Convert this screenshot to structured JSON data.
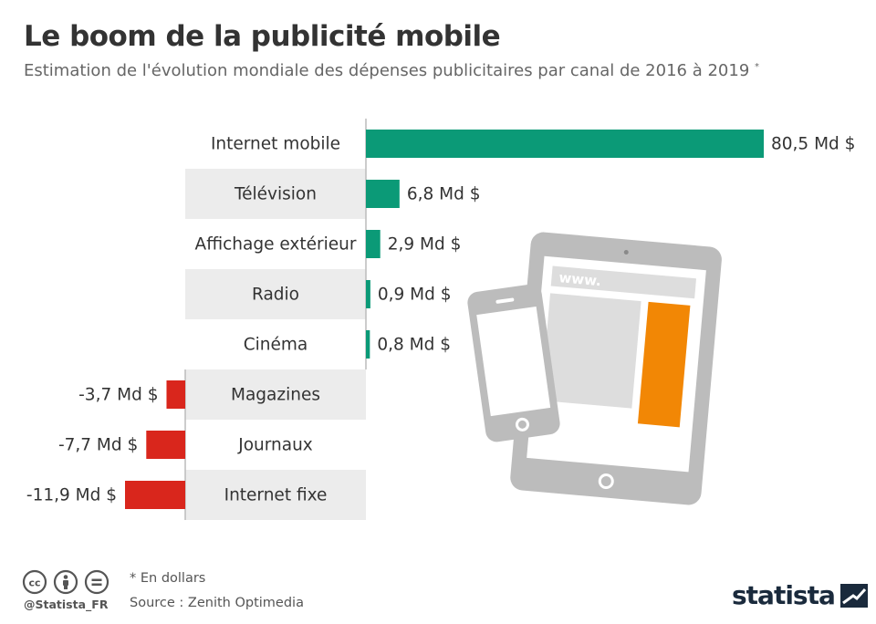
{
  "header": {
    "title": "Le boom de la publicité mobile",
    "subtitle": "Estimation de l'évolution mondiale des dépenses publicitaires par canal de 2016 à 2019",
    "subtitle_note": "*"
  },
  "chart_data": {
    "type": "bar",
    "orientation": "horizontal-diverging",
    "title": "Le boom de la publicité mobile",
    "unit": "Md $",
    "categories": [
      "Internet mobile",
      "Télévision",
      "Affichage extérieur",
      "Radio",
      "Cinéma",
      "Magazines",
      "Journaux",
      "Internet fixe"
    ],
    "values": [
      80.5,
      6.8,
      2.9,
      0.9,
      0.8,
      -3.7,
      -7.7,
      -11.9
    ],
    "value_labels": [
      "80,5 Md $",
      "6,8 Md $",
      "2,9 Md $",
      "0,9 Md $",
      "0,8 Md $",
      "-3,7 Md $",
      "-7,7 Md $",
      "-11,9 Md $"
    ],
    "colors": {
      "positive": "#0b9a77",
      "negative": "#d9261c",
      "row_band": "#ececec",
      "axis": "#bbbbbb"
    }
  },
  "illustration": {
    "browser_text": "www.",
    "accent_color": "#f28705",
    "device_color": "#bcbcbc"
  },
  "footer": {
    "note": "* En dollars",
    "source": "Source : Zenith Optimedia",
    "handle": "@Statista_FR",
    "brand": "statista"
  }
}
